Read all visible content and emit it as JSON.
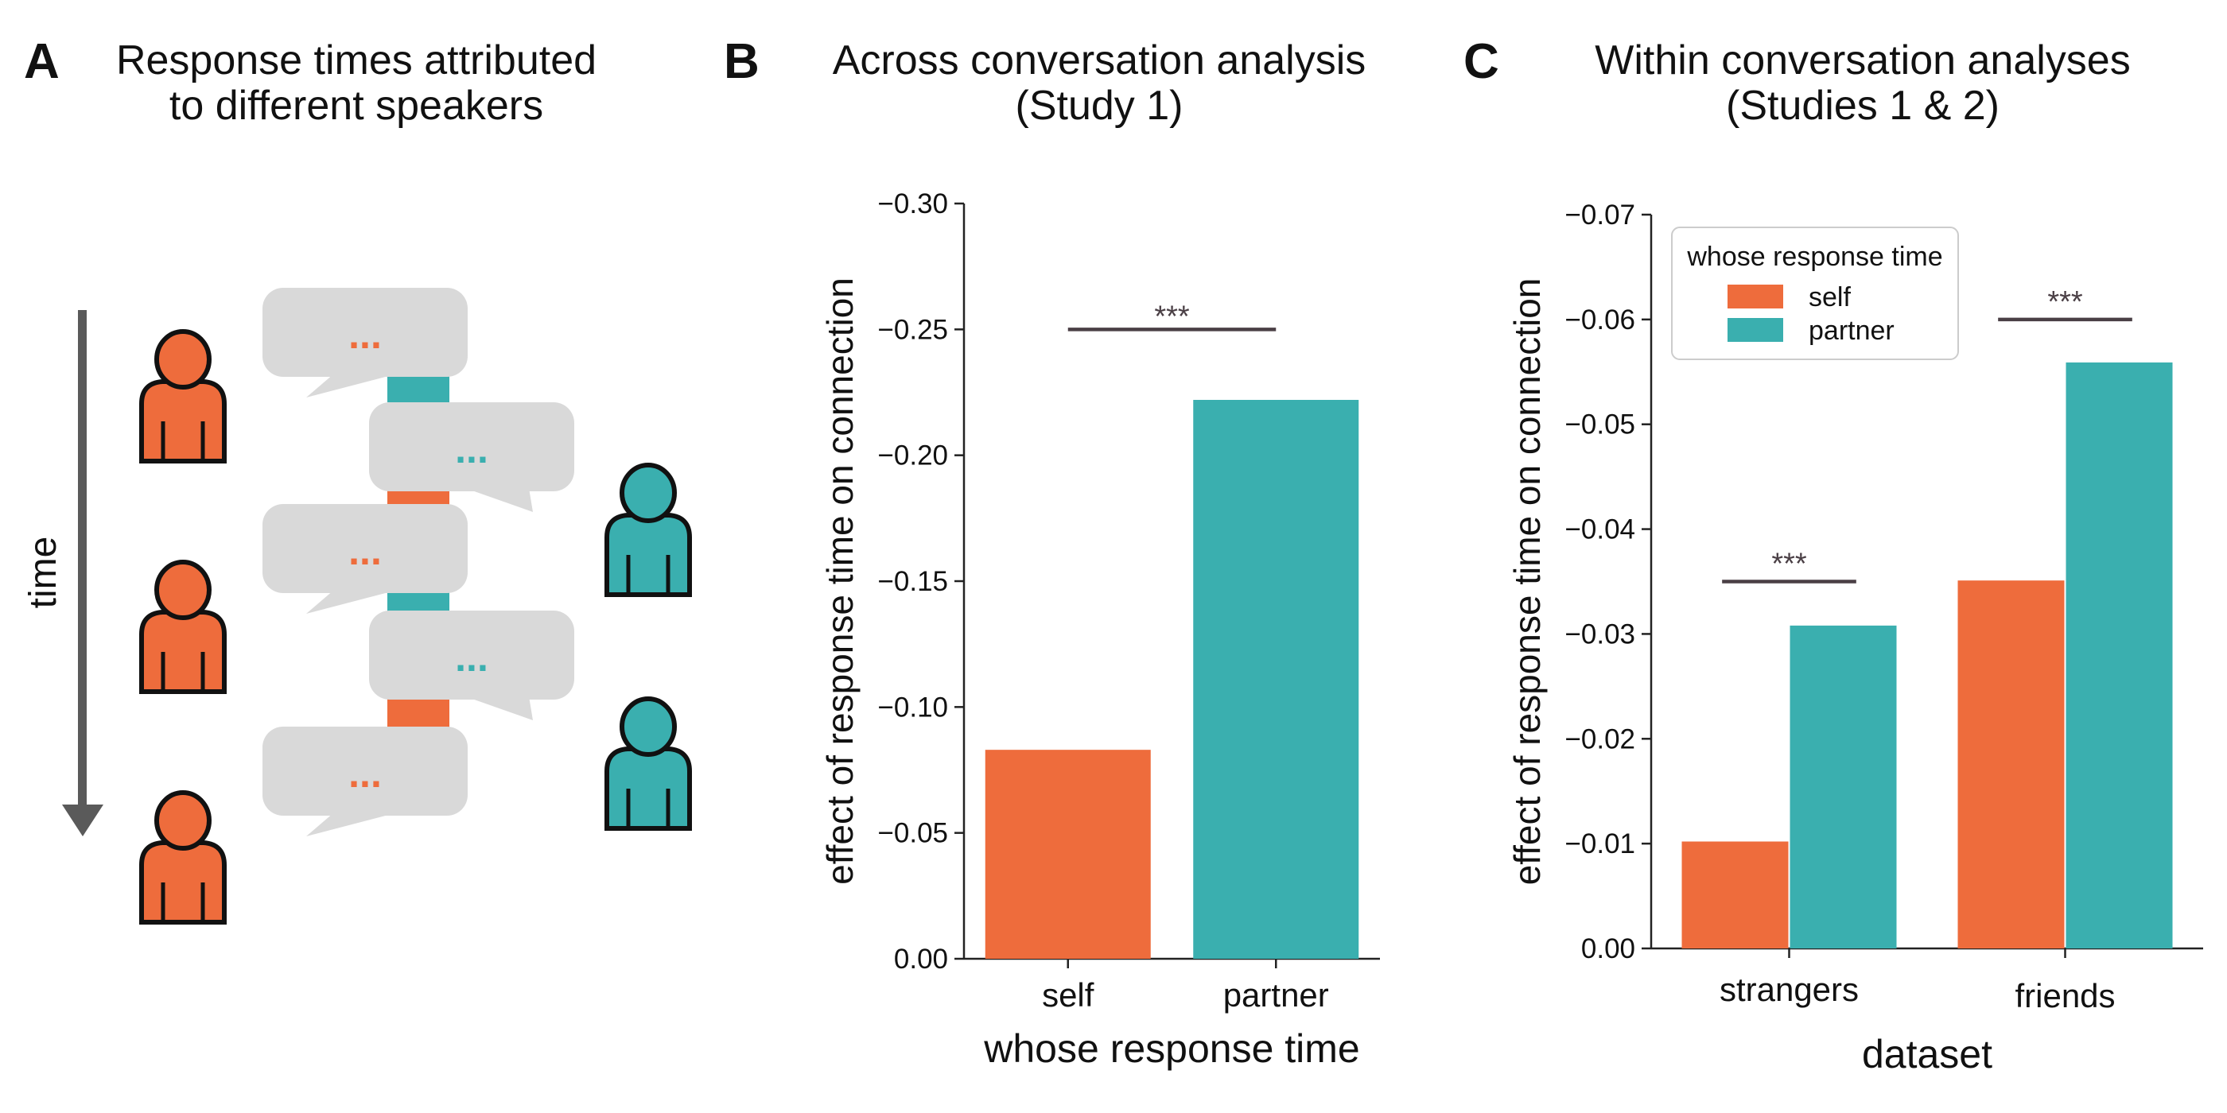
{
  "colors": {
    "self": "#EE6C3C",
    "partner": "#3AAFAF",
    "bubble": "#D9D9D9",
    "arrow": "#5A5A5A",
    "axis": "#222222",
    "sig_line": "#4A3F45",
    "outline": "#111111"
  },
  "panel_a": {
    "letter": "A",
    "title_line1": "Response times attributed",
    "title_line2": "to different speakers",
    "time_label": "time",
    "bubble_text": "...",
    "icons": {
      "person": "person-icon",
      "bubble": "speech-bubble-icon",
      "arrow": "down-arrow-icon"
    }
  },
  "panel_b": {
    "letter": "B",
    "title_line1": "Across conversation analysis",
    "title_line2": "(Study 1)"
  },
  "panel_c": {
    "letter": "C",
    "title_line1": "Within conversation analyses",
    "title_line2": "(Studies 1 & 2)"
  },
  "chart_data": [
    {
      "type": "bar",
      "categories": [
        "self",
        "partner"
      ],
      "values": [
        -0.083,
        -0.222
      ],
      "colors": [
        "#EE6C3C",
        "#3AAFAF"
      ],
      "xlabel": "whose response time",
      "ylabel": "effect of response time on connection",
      "ylim": [
        0,
        -0.3
      ],
      "inverted_y": true,
      "yticks": [
        0,
        -0.05,
        -0.1,
        -0.15,
        -0.2,
        -0.25,
        -0.3
      ],
      "ytick_labels": [
        "0.00",
        "−0.05",
        "−0.10",
        "−0.15",
        "−0.20",
        "−0.25",
        "−0.30"
      ],
      "annotations": [
        {
          "text": "***",
          "from": "self",
          "to": "partner",
          "y": -0.25
        }
      ]
    },
    {
      "type": "bar",
      "categories": [
        "strangers",
        "friends"
      ],
      "series": [
        {
          "name": "self",
          "color": "#EE6C3C",
          "values": [
            -0.0102,
            -0.0351
          ]
        },
        {
          "name": "partner",
          "color": "#3AAFAF",
          "values": [
            -0.0308,
            -0.0559
          ]
        }
      ],
      "xlabel": "dataset",
      "ylabel": "effect of response time on connection",
      "ylim": [
        0,
        -0.07
      ],
      "inverted_y": true,
      "yticks": [
        0,
        -0.01,
        -0.02,
        -0.03,
        -0.04,
        -0.05,
        -0.06,
        -0.07
      ],
      "ytick_labels": [
        "0.00",
        "−0.01",
        "−0.02",
        "−0.03",
        "−0.04",
        "−0.05",
        "−0.06",
        "−0.07"
      ],
      "legend": {
        "title": "whose response time",
        "placement": "top-left"
      },
      "annotations": [
        {
          "text": "***",
          "category": "strangers",
          "y": -0.035
        },
        {
          "text": "***",
          "category": "friends",
          "y": -0.06
        }
      ]
    }
  ]
}
